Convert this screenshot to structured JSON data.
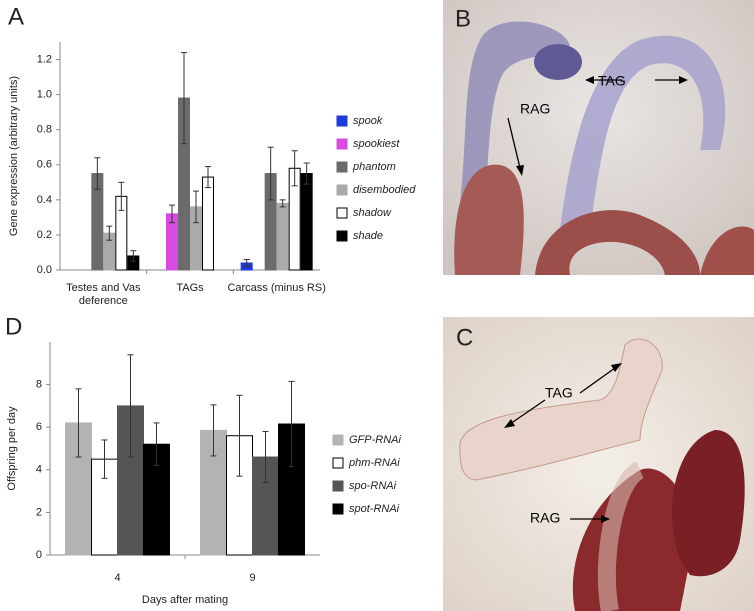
{
  "chart_data": [
    {
      "type": "bar",
      "panel_label": "A",
      "y_label": "Gene expression (arbitrary units)",
      "categories": [
        "Testes and Vas deference",
        "TAGs",
        "Carcass (minus RS)"
      ],
      "ylim": [
        0,
        1.3
      ],
      "yticks": [
        {
          "value": 0,
          "label": "0.0"
        },
        0.2,
        0.4,
        0.6,
        0.8,
        {
          "value": 1,
          "label": "1.0"
        },
        1.2
      ],
      "series": [
        {
          "name": "spook",
          "color": "#1a3adb",
          "values": [
            null,
            null,
            0.04
          ],
          "errors": [
            null,
            null,
            0.02
          ]
        },
        {
          "name": "spookiest",
          "color": "#d84be0",
          "values": [
            null,
            0.32,
            null
          ],
          "errors": [
            null,
            0.05,
            null
          ]
        },
        {
          "name": "phantom",
          "color": "#6b6b6b",
          "values": [
            0.55,
            0.98,
            0.55
          ],
          "errors": [
            0.09,
            0.26,
            0.15
          ]
        },
        {
          "name": "disembodied",
          "color": "#aaaaaa",
          "values": [
            0.21,
            0.36,
            0.38
          ],
          "errors": [
            0.04,
            0.09,
            0.02
          ]
        },
        {
          "name": "shadow",
          "color": "#ffffff",
          "values": [
            0.42,
            0.53,
            0.58
          ],
          "errors": [
            0.08,
            0.06,
            0.1
          ]
        },
        {
          "name": "shade",
          "color": "#000000",
          "values": [
            0.08,
            null,
            0.55
          ],
          "errors": [
            0.03,
            null,
            0.06
          ]
        }
      ]
    },
    {
      "type": "bar",
      "panel_label": "D",
      "y_label": "Offspring per day",
      "x_label": "Days after mating",
      "categories": [
        "4",
        "9"
      ],
      "ylim": [
        0,
        10
      ],
      "yticks": [
        0,
        2,
        4,
        6,
        8
      ],
      "series": [
        {
          "name": "GFP-RNAi",
          "color": "#b3b3b3",
          "values": [
            6.2,
            5.85
          ],
          "errors": [
            1.6,
            1.2
          ]
        },
        {
          "name": "phm-RNAi",
          "color": "#ffffff",
          "values": [
            4.5,
            5.6
          ],
          "errors": [
            0.9,
            1.9
          ]
        },
        {
          "name": "spo-RNAi",
          "color": "#555555",
          "values": [
            7.0,
            4.6
          ],
          "errors": [
            2.4,
            1.2
          ]
        },
        {
          "name": "spot-RNAi",
          "color": "#000000",
          "values": [
            5.2,
            6.15
          ],
          "errors": [
            1.0,
            2.0
          ]
        }
      ]
    }
  ],
  "images": [
    {
      "panel_label": "B",
      "annotations": [
        "TAG",
        "RAG"
      ]
    },
    {
      "panel_label": "C",
      "annotations": [
        "TAG",
        "RAG"
      ]
    }
  ]
}
